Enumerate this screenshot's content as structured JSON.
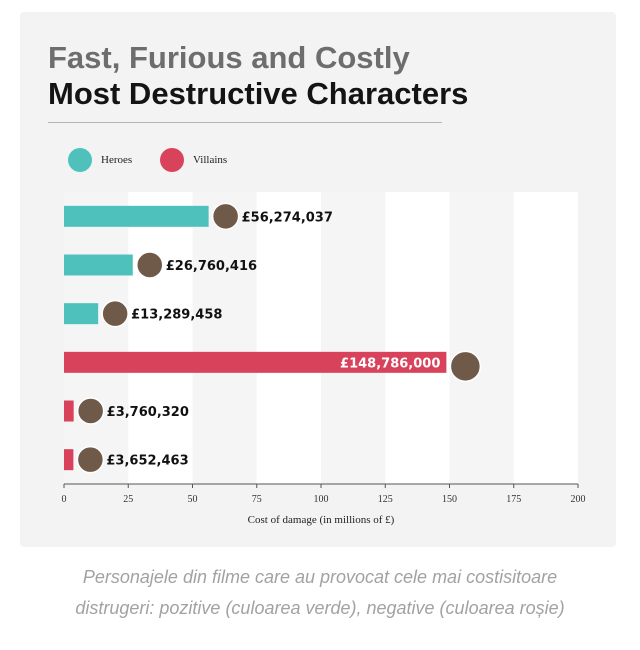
{
  "title": "Fast, Furious and Costly",
  "subtitle": "Most Destructive Characters",
  "legend": [
    {
      "label": "Heroes",
      "color": "#4fc1bd"
    },
    {
      "label": "Villains",
      "color": "#d8435b"
    }
  ],
  "caption": {
    "line1": "Personajele din filme care au provocat cele mai costisitoare",
    "line2": "distrugeri: pozitive (culoarea verde), negative (culoarea roșie)"
  },
  "chart_data": {
    "type": "bar",
    "orientation": "horizontal",
    "xlabel": "Cost of damage (in millions of £)",
    "xlim": [
      0,
      200
    ],
    "xticks": [
      "0",
      "25",
      "50",
      "75",
      "100",
      "125",
      "150",
      "175",
      "200"
    ],
    "grid": "vertical bands",
    "legend_position": "top-left",
    "bars": [
      {
        "value": 56.274037,
        "label": "£56,274,037",
        "group": "Heroes"
      },
      {
        "value": 26.760416,
        "label": "£26,760,416",
        "group": "Heroes"
      },
      {
        "value": 13.289458,
        "label": "£13,289,458",
        "group": "Heroes"
      },
      {
        "value": 148.786,
        "label": "£148,786,000",
        "group": "Villains"
      },
      {
        "value": 3.76032,
        "label": "£3,760,320",
        "group": "Villains"
      },
      {
        "value": 3.652463,
        "label": "£3,652,463",
        "group": "Villains"
      }
    ]
  }
}
